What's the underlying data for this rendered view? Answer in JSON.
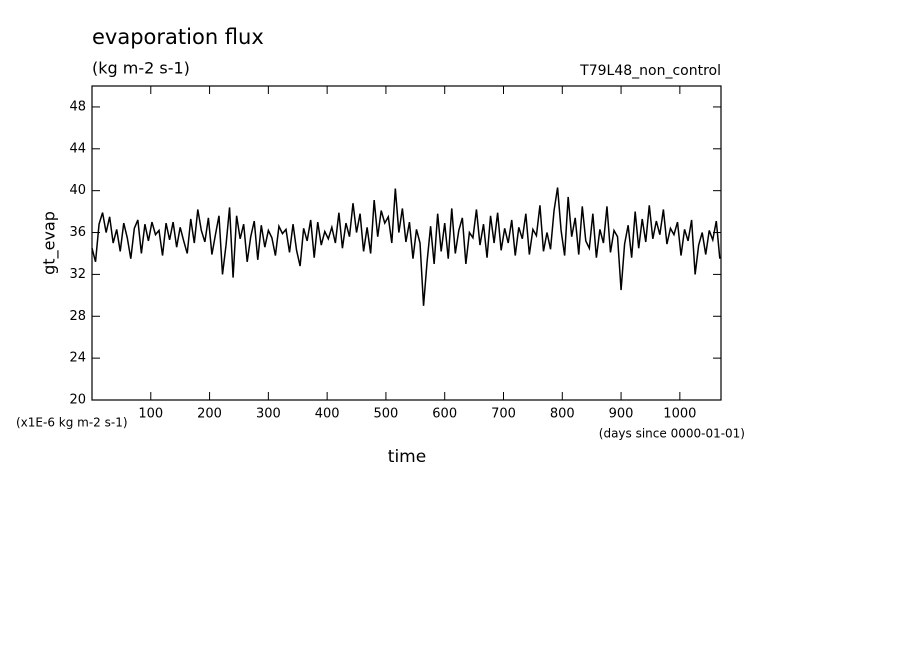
{
  "chart_data": {
    "type": "line",
    "title": "evaporation flux",
    "subtitle": "(kg m-2 s-1)",
    "run_label": "T79L48_non_control",
    "y_label": "gt_evap",
    "y_units": "(x1E-6 kg m-2 s-1)",
    "x_label": "time",
    "x_units": "(days since 0000-01-01)",
    "xlim": [
      0,
      1070
    ],
    "ylim": [
      20,
      50
    ],
    "xticks": [
      100,
      200,
      300,
      400,
      500,
      600,
      700,
      800,
      900,
      1000
    ],
    "yticks": [
      20,
      24,
      28,
      32,
      36,
      40,
      44,
      48
    ],
    "x": [
      0,
      6,
      12,
      18,
      24,
      30,
      36,
      42,
      48,
      54,
      60,
      66,
      72,
      78,
      84,
      90,
      96,
      102,
      108,
      114,
      120,
      126,
      132,
      138,
      144,
      150,
      156,
      162,
      168,
      174,
      180,
      186,
      192,
      198,
      204,
      210,
      216,
      222,
      228,
      234,
      240,
      246,
      252,
      258,
      264,
      270,
      276,
      282,
      288,
      294,
      300,
      306,
      312,
      318,
      324,
      330,
      336,
      342,
      348,
      354,
      360,
      366,
      372,
      378,
      384,
      390,
      396,
      402,
      408,
      414,
      420,
      426,
      432,
      438,
      444,
      450,
      456,
      462,
      468,
      474,
      480,
      486,
      492,
      498,
      504,
      510,
      516,
      522,
      528,
      534,
      540,
      546,
      552,
      558,
      564,
      570,
      576,
      582,
      588,
      594,
      600,
      606,
      612,
      618,
      624,
      630,
      636,
      642,
      648,
      654,
      660,
      666,
      672,
      678,
      684,
      690,
      696,
      702,
      708,
      714,
      720,
      726,
      732,
      738,
      744,
      750,
      756,
      762,
      768,
      774,
      780,
      786,
      792,
      798,
      804,
      810,
      816,
      822,
      828,
      834,
      840,
      846,
      852,
      858,
      864,
      870,
      876,
      882,
      888,
      894,
      900,
      906,
      912,
      918,
      924,
      930,
      936,
      942,
      948,
      954,
      960,
      966,
      972,
      978,
      984,
      990,
      996,
      1002,
      1008,
      1014,
      1020,
      1026,
      1032,
      1038,
      1044,
      1050,
      1056,
      1062,
      1068
    ],
    "series": [
      {
        "name": "gt_evap",
        "color": "#000000",
        "values": [
          34.5,
          33.2,
          36.8,
          37.9,
          36.0,
          37.5,
          35.0,
          36.3,
          34.2,
          36.9,
          35.5,
          33.5,
          36.4,
          37.2,
          34.0,
          36.8,
          35.2,
          37.0,
          35.8,
          36.2,
          33.8,
          36.9,
          35.3,
          37.0,
          34.6,
          36.5,
          35.2,
          34.0,
          37.3,
          35.0,
          38.2,
          36.2,
          35.1,
          37.4,
          33.9,
          35.8,
          37.6,
          32.0,
          34.8,
          38.4,
          31.7,
          37.6,
          35.4,
          36.8,
          33.2,
          35.6,
          37.1,
          33.4,
          36.7,
          34.6,
          36.2,
          35.5,
          33.8,
          36.6,
          35.9,
          36.3,
          34.1,
          36.8,
          34.3,
          32.8,
          36.4,
          35.2,
          37.2,
          33.6,
          37.0,
          34.8,
          36.1,
          35.4,
          36.5,
          35.0,
          37.9,
          34.5,
          36.9,
          35.6,
          38.8,
          36.0,
          37.8,
          34.2,
          36.5,
          34.0,
          39.1,
          35.6,
          38.1,
          36.9,
          37.5,
          35.0,
          40.2,
          36.0,
          38.3,
          35.1,
          37.0,
          33.5,
          36.3,
          35.0,
          29.0,
          33.2,
          36.6,
          33.0,
          37.8,
          34.2,
          36.9,
          33.5,
          38.3,
          34.0,
          36.2,
          37.4,
          33.0,
          36.0,
          35.5,
          38.2,
          34.8,
          36.8,
          33.6,
          37.6,
          35.0,
          37.9,
          34.3,
          36.4,
          35.0,
          37.2,
          33.8,
          36.5,
          35.4,
          37.8,
          33.9,
          36.3,
          35.7,
          38.6,
          34.2,
          36.0,
          34.4,
          38.1,
          40.3,
          36.2,
          33.8,
          39.4,
          35.6,
          37.4,
          33.9,
          38.5,
          35.2,
          34.5,
          37.8,
          33.6,
          36.3,
          35.0,
          38.5,
          34.1,
          36.2,
          35.6,
          30.5,
          34.9,
          36.7,
          33.6,
          38.0,
          34.5,
          37.3,
          35.1,
          38.6,
          35.4,
          37.1,
          35.8,
          38.2,
          34.9,
          36.4,
          35.8,
          37.0,
          33.8,
          36.3,
          35.2,
          37.2,
          32.0,
          34.8,
          36.0,
          33.9,
          36.2,
          35.3,
          37.1,
          33.5
        ]
      }
    ]
  }
}
